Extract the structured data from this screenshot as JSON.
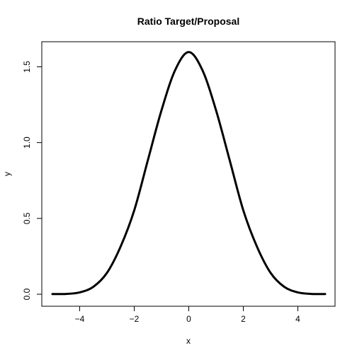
{
  "chart_data": {
    "type": "line",
    "title": "Ratio Target/Proposal",
    "xlabel": "x",
    "ylabel": "y",
    "xlim": [
      -5,
      5
    ],
    "ylim": [
      0,
      1.6
    ],
    "xticks": [
      -4,
      -2,
      0,
      2,
      4
    ],
    "xtick_labels": [
      "−4",
      "−2",
      "0",
      "2",
      "4"
    ],
    "yticks": [
      0.0,
      0.5,
      1.0,
      1.5
    ],
    "ytick_labels": [
      "0.0",
      "0.5",
      "1.0",
      "1.5"
    ],
    "grid": false,
    "series": [
      {
        "color": "#000000",
        "x": [
          -5.0,
          -4.5,
          -4.0,
          -3.5,
          -3.0,
          -2.5,
          -2.0,
          -1.5,
          -1.0,
          -0.5,
          0.0,
          0.5,
          1.0,
          1.5,
          2.0,
          2.5,
          3.0,
          3.5,
          4.0,
          4.5,
          5.0
        ],
        "y": [
          0.001,
          0.002,
          0.012,
          0.049,
          0.141,
          0.314,
          0.553,
          0.884,
          1.213,
          1.478,
          1.597,
          1.478,
          1.213,
          0.884,
          0.553,
          0.314,
          0.141,
          0.049,
          0.012,
          0.002,
          0.001
        ]
      }
    ]
  }
}
